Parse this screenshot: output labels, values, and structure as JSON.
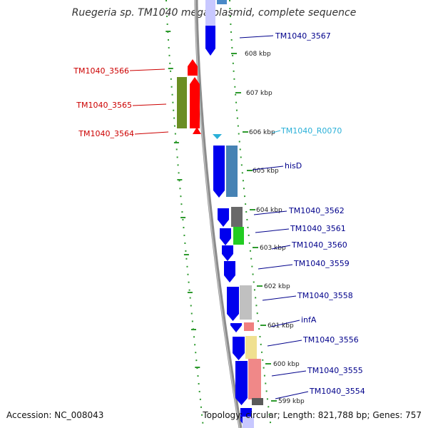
{
  "title": "Ruegeria sp. TM1040 mega plasmid, complete sequence",
  "footer": {
    "accession": "Accession: NC_008043",
    "summary": "Topology: circular; Length: 821,788 bp; Genes: 757"
  },
  "colors": {
    "backbone": "#8c8c8c",
    "ruler": "#2e9a2e",
    "forward_label": "#cc0000",
    "reverse_label": "#00008b",
    "rna_label": "#2ab0d8"
  },
  "ticks": [
    {
      "label": "608 kbp"
    },
    {
      "label": "607 kbp"
    },
    {
      "label": "606 kbp"
    },
    {
      "label": "605 kbp"
    },
    {
      "label": "604 kbp"
    },
    {
      "label": "603 kbp"
    },
    {
      "label": "602 kbp"
    },
    {
      "label": "601 kbp"
    },
    {
      "label": "600 kbp"
    },
    {
      "label": "599 kbp"
    }
  ],
  "features": {
    "left": [
      {
        "label": "TM1040_3566"
      },
      {
        "label": "TM1040_3565"
      },
      {
        "label": "TM1040_3564"
      }
    ],
    "right": [
      {
        "label": "TM1040_3567"
      },
      {
        "label": "TM1040_R0070"
      },
      {
        "label": "hisD"
      },
      {
        "label": "TM1040_3562"
      },
      {
        "label": "TM1040_3561"
      },
      {
        "label": "TM1040_3560"
      },
      {
        "label": "TM1040_3559"
      },
      {
        "label": "TM1040_3558"
      },
      {
        "label": "infA"
      },
      {
        "label": "TM1040_3556"
      },
      {
        "label": "TM1040_3555"
      },
      {
        "label": "TM1040_3554"
      }
    ]
  }
}
